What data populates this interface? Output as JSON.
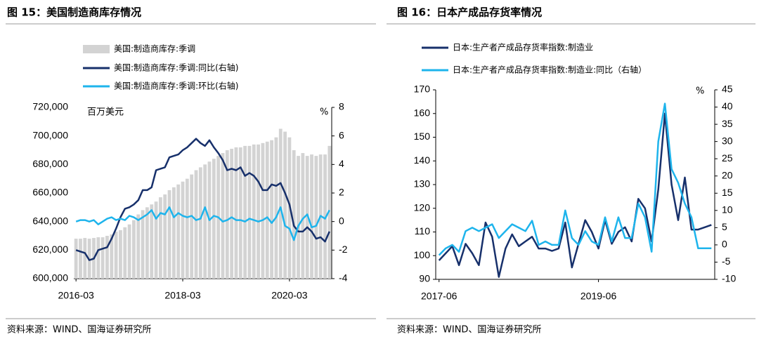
{
  "chart_data": [
    {
      "type": "combo",
      "title": "图 15：美国制造商库存情况",
      "source": "资料来源：WIND、国海证券研究所",
      "y_unit": "百万美元",
      "y2_unit": "%",
      "categories": [
        "2016-03",
        null,
        null,
        null,
        null,
        null,
        null,
        null,
        null,
        null,
        null,
        null,
        null,
        null,
        null,
        null,
        null,
        null,
        null,
        null,
        null,
        null,
        null,
        null,
        "2018-03",
        null,
        null,
        null,
        null,
        null,
        null,
        null,
        null,
        null,
        null,
        null,
        null,
        null,
        null,
        null,
        null,
        null,
        null,
        null,
        null,
        null,
        null,
        null,
        "2020-03",
        null,
        null,
        null,
        null,
        null,
        null,
        null,
        null,
        null
      ],
      "ylim": [
        600000,
        720000
      ],
      "yticks": [
        {
          "value": 600000,
          "label": "600,000"
        },
        {
          "value": 620000,
          "label": "620,000"
        },
        {
          "value": 640000,
          "label": "640,000"
        },
        {
          "value": 660000,
          "label": "660,000"
        },
        {
          "value": 680000,
          "label": "680,000"
        },
        {
          "value": 700000,
          "label": "700,000"
        },
        {
          "value": 720000,
          "label": "720,000"
        }
      ],
      "y2lim": [
        -4,
        8
      ],
      "y2ticks": [
        -4,
        -2,
        0,
        2,
        4,
        6,
        8
      ],
      "series": [
        {
          "name": "美国:制造商库存:季调",
          "type": "bar",
          "color": "#d3d3d3",
          "values": [
            628000,
            628000,
            628500,
            628000,
            628500,
            629000,
            629000,
            630000,
            631000,
            633000,
            634000,
            636000,
            638000,
            641000,
            645000,
            648000,
            650000,
            652000,
            654000,
            657000,
            659000,
            662000,
            664000,
            666000,
            668000,
            670000,
            673000,
            676000,
            678000,
            680000,
            682000,
            684000,
            686000,
            688000,
            690000,
            691000,
            692000,
            692000,
            693000,
            693000,
            694000,
            694000,
            695000,
            696000,
            697000,
            699000,
            705000,
            703000,
            699000,
            690000,
            686000,
            688000,
            686000,
            687000,
            686000,
            687000,
            687000,
            693000
          ]
        },
        {
          "name": "美国:制造商库存:季调:同比(右轴)",
          "type": "line",
          "axis": "y2",
          "color": "#17306b",
          "values": [
            -2.0,
            -2.1,
            -2.2,
            -2.7,
            -2.6,
            -2.0,
            -1.9,
            -1.8,
            -1.2,
            -0.5,
            0.3,
            0.9,
            1.0,
            1.2,
            1.5,
            2.2,
            2.2,
            2.4,
            3.6,
            3.7,
            3.8,
            4.5,
            4.6,
            4.7,
            5.0,
            5.2,
            5.5,
            5.8,
            5.5,
            5.3,
            5.7,
            5.2,
            4.8,
            4.3,
            3.6,
            3.7,
            3.6,
            3.8,
            3.2,
            3.4,
            3.2,
            2.8,
            2.2,
            2.2,
            2.6,
            2.5,
            2.7,
            2.0,
            1.2,
            -0.3,
            -0.7,
            -0.7,
            -0.4,
            -0.7,
            -1.2,
            -1.1,
            -1.4,
            -0.7
          ]
        },
        {
          "name": "美国:制造商库存:季调:环比(右轴)",
          "type": "line",
          "axis": "y2",
          "color": "#1eb4ec",
          "values": [
            0.0,
            0.1,
            0.1,
            0.0,
            0.1,
            -0.2,
            0.0,
            0.2,
            0.3,
            0.1,
            0.2,
            0.1,
            0.4,
            0.3,
            0.1,
            0.3,
            0.5,
            0.8,
            0.2,
            0.6,
            0.5,
            1.0,
            0.3,
            0.6,
            0.4,
            0.3,
            0.4,
            0.1,
            0.2,
            1.0,
            0.1,
            0.4,
            0.3,
            0.0,
            0.1,
            0.3,
            0.1,
            0.1,
            0.0,
            0.2,
            0.1,
            0.0,
            0.1,
            0.3,
            -0.1,
            0.3,
            1.0,
            -0.3,
            -0.5,
            -1.3,
            -0.3,
            0.2,
            0.5,
            -0.4,
            -0.3,
            0.4,
            0.2,
            0.8
          ]
        }
      ]
    },
    {
      "type": "line",
      "title": "图 16：日本产成品存货率情况",
      "source": "资料来源：WIND、国海证券研究所",
      "y2_unit": "%",
      "categories": [
        "2017-06",
        null,
        null,
        null,
        null,
        null,
        null,
        null,
        null,
        null,
        null,
        null,
        null,
        null,
        null,
        null,
        null,
        null,
        null,
        null,
        null,
        null,
        null,
        null,
        "2019-06",
        null,
        null,
        null,
        null,
        null,
        null,
        null,
        null,
        null,
        null,
        null,
        null,
        null,
        null,
        null,
        null,
        null
      ],
      "ylim": [
        90,
        170
      ],
      "yticks": [
        90,
        100,
        110,
        120,
        130,
        140,
        150,
        160,
        170
      ],
      "y2lim": [
        -10,
        45
      ],
      "y2ticks": [
        -10,
        -5,
        0,
        5,
        10,
        15,
        20,
        25,
        30,
        35,
        40,
        45
      ],
      "series": [
        {
          "name": "日本:生产者产成品存货率指数:制造业",
          "type": "line",
          "color": "#17306b",
          "values": [
            98,
            101,
            104,
            96,
            105,
            101,
            96,
            114,
            108,
            91,
            103,
            109,
            104,
            106,
            108,
            103,
            103,
            102,
            103,
            114,
            95,
            105,
            115,
            110,
            103,
            115,
            105,
            110,
            112,
            106,
            124,
            120,
            106,
            128,
            160,
            130,
            115,
            133,
            111,
            111,
            112,
            113
          ]
        },
        {
          "name": "日本:生产者产成品存货率指数:制造业:同比（右轴）",
          "type": "line",
          "axis": "y2",
          "color": "#1eb4ec",
          "values": [
            -3,
            -1,
            0,
            -2,
            4,
            5,
            4,
            5,
            6,
            2,
            4,
            6,
            5,
            4,
            7,
            0,
            1,
            0,
            0,
            10,
            2,
            0,
            4,
            1,
            0,
            8,
            1,
            8,
            2,
            2,
            12,
            8,
            -2,
            30,
            41,
            22,
            18,
            12,
            8,
            -1,
            -1,
            -1
          ]
        }
      ]
    }
  ]
}
